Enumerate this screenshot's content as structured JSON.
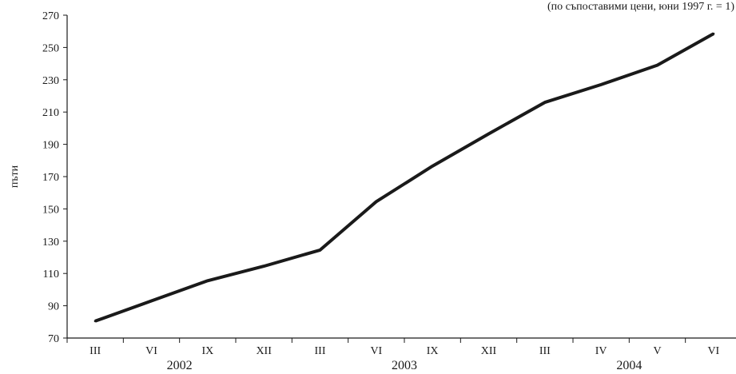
{
  "chart_data": {
    "type": "line",
    "title": "",
    "note": "(по съпоставими цени, юни 1997 г. = 1)",
    "xlabel": "",
    "ylabel": "пъти",
    "ylim": [
      70,
      270
    ],
    "yticks": [
      "70",
      "90",
      "110",
      "130",
      "150",
      "170",
      "190",
      "210",
      "230",
      "250",
      "270"
    ],
    "categories": [
      "III",
      "VI",
      "IX",
      "XII",
      "III",
      "VI",
      "IX",
      "XII",
      "III",
      "IV",
      "V",
      "VI"
    ],
    "year_groups": [
      {
        "label": "2002",
        "start": 0,
        "end": 3
      },
      {
        "label": "2003",
        "start": 4,
        "end": 7
      },
      {
        "label": "2004",
        "start": 8,
        "end": 11
      }
    ],
    "series": [
      {
        "values": [
          80.5,
          93,
          105.5,
          114.5,
          124.5,
          154.5,
          176.5,
          196.5,
          216,
          227,
          239,
          258.5
        ]
      }
    ],
    "colors": {
      "line": "#1a1a1a",
      "axis": "#1a1a1a"
    },
    "grid": false,
    "legend": "none"
  }
}
